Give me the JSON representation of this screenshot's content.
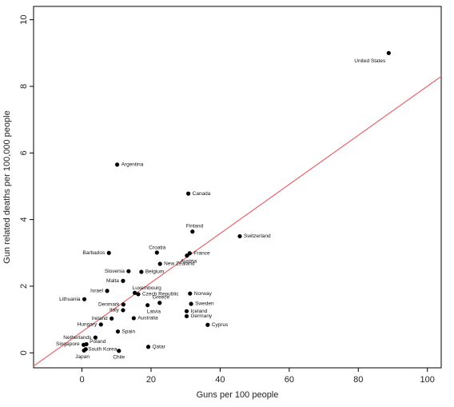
{
  "chart_data": {
    "type": "scatter",
    "title": "",
    "xlabel": "Guns per 100 people",
    "ylabel": "Gun related deaths per 100,000 people",
    "xlim": [
      -14,
      104
    ],
    "ylim": [
      -0.45,
      10.4
    ],
    "xticks": [
      0,
      20,
      40,
      60,
      80,
      100
    ],
    "yticks": [
      0,
      2,
      4,
      6,
      8,
      10
    ],
    "grid": false,
    "point_color": "#000000",
    "trend_line": {
      "color": "#e6666a",
      "points": [
        [
          -14,
          -0.4
        ],
        [
          104,
          8.3
        ]
      ]
    },
    "points": [
      {
        "label": "United States",
        "x": 88.8,
        "y": 9.0
      },
      {
        "label": "Argentina",
        "x": 10.2,
        "y": 5.65
      },
      {
        "label": "Canada",
        "x": 30.8,
        "y": 4.78
      },
      {
        "label": "Finland",
        "x": 32.0,
        "y": 3.64
      },
      {
        "label": "Switzerland",
        "x": 45.7,
        "y": 3.5
      },
      {
        "label": "Croatia",
        "x": 21.7,
        "y": 3.01
      },
      {
        "label": "Barbados",
        "x": 7.8,
        "y": 3.0
      },
      {
        "label": "France",
        "x": 31.2,
        "y": 2.99
      },
      {
        "label": "Austria",
        "x": 30.4,
        "y": 2.92
      },
      {
        "label": "New Zealand",
        "x": 22.6,
        "y": 2.67
      },
      {
        "label": "Slovenia",
        "x": 13.5,
        "y": 2.45
      },
      {
        "label": "Belgium",
        "x": 17.2,
        "y": 2.43
      },
      {
        "label": "Malta",
        "x": 11.9,
        "y": 2.16
      },
      {
        "label": "Israel",
        "x": 7.3,
        "y": 1.86
      },
      {
        "label": "Luxembourg",
        "x": 15.3,
        "y": 1.8
      },
      {
        "label": "Czech Republic",
        "x": 16.3,
        "y": 1.76
      },
      {
        "label": "Norway",
        "x": 31.3,
        "y": 1.78
      },
      {
        "label": "Lithuania",
        "x": 0.7,
        "y": 1.61
      },
      {
        "label": "Greece",
        "x": 22.5,
        "y": 1.5
      },
      {
        "label": "Sweden",
        "x": 31.6,
        "y": 1.47
      },
      {
        "label": "Denmark",
        "x": 12.0,
        "y": 1.45
      },
      {
        "label": "Latvia",
        "x": 19.0,
        "y": 1.43
      },
      {
        "label": "Italy",
        "x": 11.9,
        "y": 1.28
      },
      {
        "label": "Iceland",
        "x": 30.3,
        "y": 1.25
      },
      {
        "label": "Germany",
        "x": 30.3,
        "y": 1.1
      },
      {
        "label": "Ireland",
        "x": 8.6,
        "y": 1.03
      },
      {
        "label": "Australia",
        "x": 15.0,
        "y": 1.04
      },
      {
        "label": "Hungary",
        "x": 5.5,
        "y": 0.85
      },
      {
        "label": "Cyprus",
        "x": 36.4,
        "y": 0.84
      },
      {
        "label": "Spain",
        "x": 10.4,
        "y": 0.64
      },
      {
        "label": "Netherlands",
        "x": 3.9,
        "y": 0.46
      },
      {
        "label": "Poland",
        "x": 1.3,
        "y": 0.26
      },
      {
        "label": "Singapore",
        "x": 0.5,
        "y": 0.24
      },
      {
        "label": "Qatar",
        "x": 19.2,
        "y": 0.18
      },
      {
        "label": "South Korea",
        "x": 1.1,
        "y": 0.11
      },
      {
        "label": "Japan",
        "x": 0.6,
        "y": 0.07
      },
      {
        "label": "Chile",
        "x": 10.7,
        "y": 0.06
      }
    ]
  }
}
